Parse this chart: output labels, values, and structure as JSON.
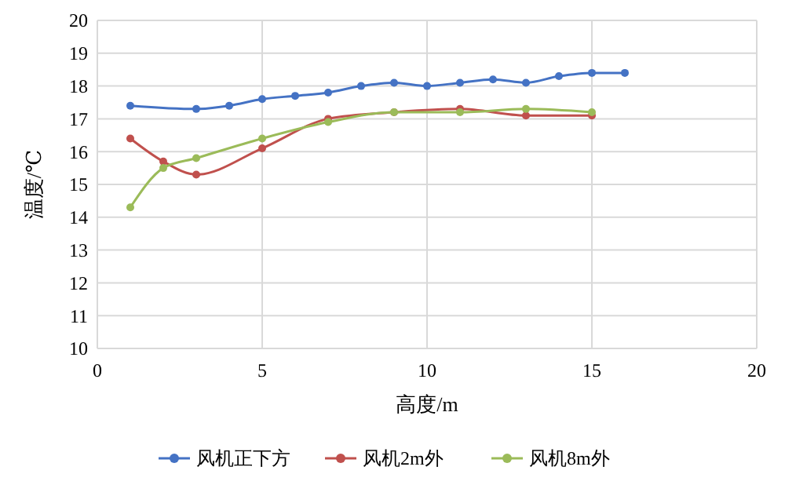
{
  "chart_data": {
    "type": "line",
    "xlabel": "高度/m",
    "ylabel": "温度/℃",
    "xlim": [
      0,
      20
    ],
    "xticks": [
      0,
      5,
      10,
      15,
      20
    ],
    "ylim": [
      10,
      20
    ],
    "yticks": [
      10,
      11,
      12,
      13,
      14,
      15,
      16,
      17,
      18,
      19,
      20
    ],
    "grid": true,
    "legend": "bottom",
    "marker": "circle",
    "line_style": "solid",
    "series": [
      {
        "name": "风机正下方",
        "color": "#4472c4",
        "x": [
          1,
          3,
          4,
          5,
          6,
          7,
          8,
          9,
          10,
          11,
          12,
          13,
          14,
          15,
          16
        ],
        "values": [
          17.4,
          17.3,
          17.4,
          17.6,
          17.7,
          17.8,
          18.0,
          18.1,
          18.0,
          18.1,
          18.2,
          18.1,
          18.3,
          18.4,
          18.4
        ]
      },
      {
        "name": "风机2m外",
        "color": "#c0504d",
        "x": [
          1,
          2,
          3,
          5,
          7,
          9,
          11,
          13,
          15
        ],
        "values": [
          16.4,
          15.7,
          15.3,
          16.1,
          17.0,
          17.2,
          17.3,
          17.1,
          17.1
        ]
      },
      {
        "name": "风机8m外",
        "color": "#9bbb59",
        "x": [
          1,
          2,
          3,
          5,
          7,
          9,
          11,
          13,
          15
        ],
        "values": [
          14.3,
          15.5,
          15.8,
          16.4,
          16.9,
          17.2,
          17.2,
          17.3,
          17.2
        ]
      }
    ]
  }
}
